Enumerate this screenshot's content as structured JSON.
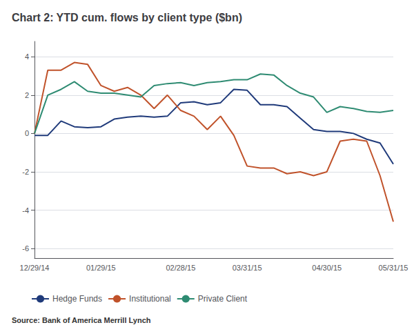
{
  "chart_data": {
    "type": "line",
    "title": "Chart 2: YTD cum. flows by client type ($bn)",
    "source": "Source: Bank of America Merrill Lynch",
    "categories": [
      "12/29/14",
      null,
      null,
      null,
      null,
      "01/29/15",
      null,
      null,
      null,
      null,
      null,
      "02/28/15",
      null,
      null,
      null,
      null,
      "03/31/15",
      null,
      null,
      null,
      null,
      null,
      "04/30/15",
      null,
      null,
      null,
      null,
      "05/31/15"
    ],
    "series": [
      {
        "name": "Hedge Funds",
        "color": "#1f3a7a",
        "values": [
          -0.1,
          -0.1,
          0.65,
          0.35,
          0.3,
          0.35,
          0.75,
          0.85,
          0.9,
          0.85,
          0.9,
          1.6,
          1.65,
          1.5,
          1.6,
          2.3,
          2.25,
          1.5,
          1.5,
          1.4,
          0.8,
          0.2,
          0.1,
          0.1,
          0.0,
          -0.3,
          -0.5,
          -1.6
        ]
      },
      {
        "name": "Institutional",
        "color": "#c0522a",
        "values": [
          0.0,
          3.3,
          3.3,
          3.7,
          3.6,
          2.5,
          2.2,
          2.4,
          2.0,
          1.3,
          2.0,
          1.2,
          0.9,
          0.2,
          0.9,
          -0.1,
          -1.7,
          -1.8,
          -1.8,
          -2.1,
          -2.0,
          -2.2,
          -2.0,
          -0.4,
          -0.3,
          -0.4,
          -2.2,
          -4.6
        ]
      },
      {
        "name": "Private Client",
        "color": "#2e8b72",
        "values": [
          0.0,
          2.0,
          2.3,
          2.7,
          2.2,
          2.1,
          2.1,
          2.0,
          1.9,
          2.5,
          2.6,
          2.65,
          2.5,
          2.65,
          2.7,
          2.8,
          2.8,
          3.1,
          3.05,
          2.5,
          2.1,
          1.9,
          1.1,
          1.4,
          1.3,
          1.15,
          1.1,
          1.2
        ]
      }
    ],
    "ylim": [
      -6.5,
      4.8
    ],
    "yticks": [
      -6,
      -4,
      -2,
      0,
      2,
      4
    ],
    "grid": true,
    "legend": "lower left"
  }
}
